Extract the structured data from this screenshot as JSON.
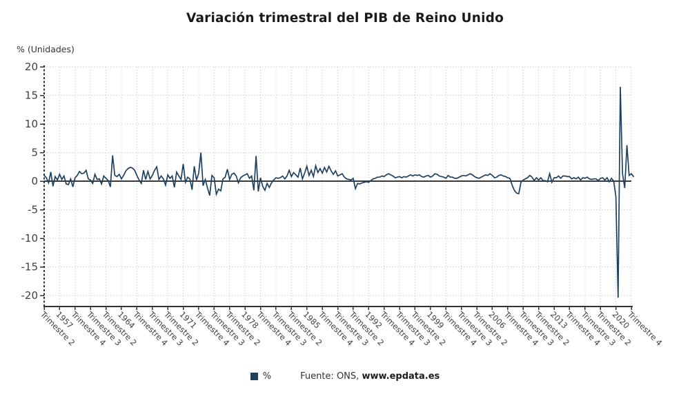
{
  "title": "Variación trimestral del PIB de Reino Unido",
  "y_axis_label": "% (Unidades)",
  "legend": {
    "series_label": "%",
    "source_label": "Fuente: ONS,",
    "source_link": "www.epdata.es"
  },
  "colors": {
    "series_line": "#1f415f",
    "zero_line": "#3a3a3a",
    "axis": "#333333",
    "grid": "#cfcfcf",
    "tick_text": "#404040",
    "title_text": "#1a1a1a"
  },
  "chart_data": {
    "type": "line",
    "title": "Variación trimestral del PIB de Reino Unido",
    "xlabel": "",
    "ylabel": "% (Unidades)",
    "ylim": [
      -22,
      20
    ],
    "y_ticks": [
      20,
      15,
      10,
      5,
      0,
      -5,
      -10,
      -15,
      -20
    ],
    "grid": true,
    "legend_position": "bottom",
    "x_start": "1955 Trimestre 2",
    "x_end": "2022 Trimestre 1",
    "frequency": "trimestral",
    "x_tick_every_n_points": 7,
    "x_tick_labels": [
      "Trimestre 2",
      "1957",
      "Trimestre 4",
      "Trimestre 3",
      "Trimestre 2",
      "1964",
      "Trimestre 4",
      "Trimestre 3",
      "Trimestre 2",
      "1971",
      "Trimestre 4",
      "Trimestre 3",
      "Trimestre 2",
      "1978",
      "Trimestre 4",
      "Trimestre 3",
      "Trimestre 2",
      "1985",
      "Trimestre 4",
      "Trimestre 3",
      "Trimestre 2",
      "1992",
      "Trimestre 4",
      "Trimestre 3",
      "Trimestre 2",
      "1999",
      "Trimestre 4",
      "Trimestre 3",
      "Trimestre 2",
      "2006",
      "Trimestre 4",
      "Trimestre 3",
      "Trimestre 2",
      "2013",
      "Trimestre 4",
      "Trimestre 3",
      "Trimestre 2",
      "2020",
      "Trimestre 4"
    ],
    "series": [
      {
        "name": "%",
        "values": [
          1.0,
          0.6,
          -0.3,
          1.6,
          -0.9,
          0.8,
          0.2,
          1.2,
          0.3,
          0.9,
          -0.5,
          -0.6,
          0.4,
          -1.0,
          0.6,
          1.0,
          1.7,
          1.3,
          1.4,
          1.9,
          0.4,
          0.2,
          -0.4,
          1.2,
          0.3,
          0.4,
          -0.5,
          0.9,
          0.5,
          0.1,
          -1.0,
          4.5,
          1.0,
          0.8,
          1.2,
          0.4,
          1.0,
          1.8,
          2.2,
          2.4,
          2.3,
          1.9,
          1.0,
          0.2,
          -0.4,
          1.9,
          0.3,
          1.7,
          0.4,
          1.0,
          1.9,
          2.5,
          0.3,
          0.9,
          0.4,
          -0.7,
          1.1,
          0.5,
          0.9,
          -1.1,
          1.6,
          0.9,
          0.3,
          3.0,
          -0.2,
          0.7,
          0.4,
          -1.5,
          2.6,
          0.2,
          1.4,
          5.0,
          -0.8,
          0.3,
          -1.2,
          -2.5,
          1.0,
          0.6,
          -2.3,
          -1.4,
          -1.7,
          0.4,
          0.7,
          2.1,
          0.3,
          1.2,
          1.4,
          0.9,
          -0.3,
          0.6,
          0.9,
          1.1,
          1.3,
          0.5,
          0.9,
          -1.6,
          4.4,
          -1.8,
          0.6,
          -0.9,
          -1.6,
          -0.4,
          -1.1,
          -0.3,
          0.2,
          0.6,
          0.5,
          0.6,
          0.9,
          0.4,
          0.9,
          1.9,
          0.8,
          1.5,
          1.1,
          0.7,
          2.3,
          0.4,
          1.4,
          2.6,
          1.0,
          1.9,
          0.8,
          2.7,
          1.5,
          2.2,
          1.4,
          2.4,
          1.6,
          2.6,
          1.8,
          1.2,
          1.8,
          0.9,
          1.1,
          1.3,
          0.7,
          0.4,
          0.3,
          0.2,
          0.5,
          -1.3,
          -0.4,
          -0.5,
          -0.3,
          -0.2,
          -0.1,
          -0.2,
          0.1,
          0.4,
          0.5,
          0.7,
          0.7,
          0.9,
          0.8,
          1.1,
          1.3,
          1.1,
          0.9,
          0.6,
          0.7,
          0.8,
          0.6,
          0.8,
          0.7,
          0.9,
          1.1,
          0.9,
          1.1,
          1.0,
          1.1,
          0.8,
          0.7,
          0.9,
          1.0,
          0.7,
          0.9,
          1.3,
          1.2,
          0.9,
          0.8,
          0.7,
          0.5,
          1.0,
          0.7,
          0.7,
          0.5,
          0.5,
          0.7,
          0.9,
          1.0,
          0.9,
          1.1,
          1.3,
          1.1,
          0.8,
          0.6,
          0.5,
          0.7,
          0.9,
          1.1,
          1.0,
          1.3,
          1.0,
          0.6,
          0.7,
          1.0,
          1.1,
          0.9,
          0.8,
          0.6,
          0.5,
          -0.7,
          -1.6,
          -2.1,
          -2.2,
          -0.2,
          0.2,
          0.4,
          0.6,
          1.0,
          0.7,
          0.1,
          0.6,
          0.2,
          0.6,
          0.1,
          0.1,
          -0.1,
          1.3,
          -0.2,
          0.6,
          0.6,
          0.9,
          0.5,
          0.9,
          0.9,
          0.8,
          0.8,
          0.4,
          0.6,
          0.4,
          0.7,
          0.2,
          0.6,
          0.5,
          0.7,
          0.4,
          0.3,
          0.4,
          0.4,
          0.1,
          0.5,
          0.6,
          0.2,
          0.6,
          -0.1,
          0.5,
          0.0,
          -2.7,
          -20.4,
          16.5,
          1.3,
          -1.2,
          6.3,
          1.0,
          1.3,
          0.8
        ]
      }
    ]
  }
}
